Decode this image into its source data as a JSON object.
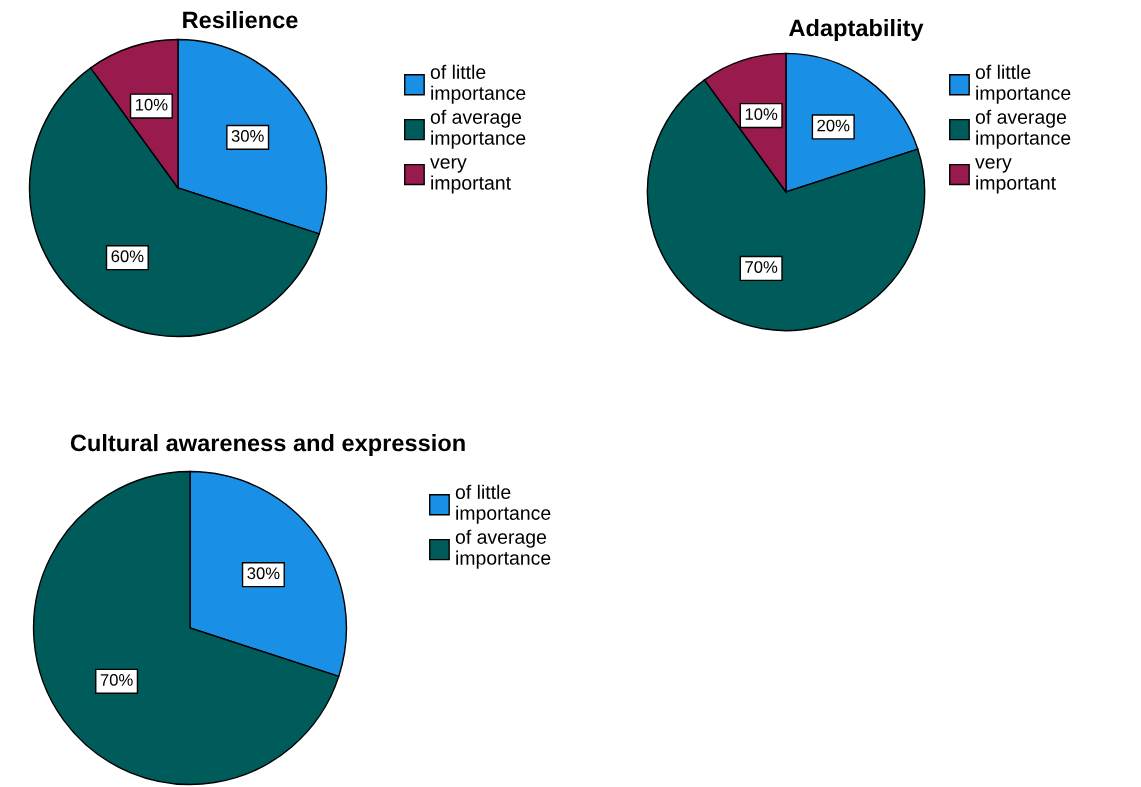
{
  "chart_data": [
    {
      "type": "pie",
      "title": "Resilience",
      "categories": [
        "of little importance",
        "of average importance",
        "very important"
      ],
      "values": [
        30,
        60,
        10
      ],
      "colors": [
        "#1a8fe6",
        "#005b5b",
        "#991a4c"
      ],
      "value_labels": [
        "30%",
        "60%",
        "10%"
      ],
      "legend": "right"
    },
    {
      "type": "pie",
      "title": "Adaptability",
      "categories": [
        "of little importance",
        "of average importance",
        "very important"
      ],
      "values": [
        20,
        70,
        10
      ],
      "colors": [
        "#1a8fe6",
        "#005b5b",
        "#991a4c"
      ],
      "value_labels": [
        "20%",
        "70%",
        "10%"
      ],
      "legend": "right"
    },
    {
      "type": "pie",
      "title": "Cultural awareness and expression",
      "categories": [
        "of little importance",
        "of average importance"
      ],
      "values": [
        30,
        70
      ],
      "colors": [
        "#1a8fe6",
        "#005b5b"
      ],
      "value_labels": [
        "30%",
        "70%"
      ],
      "legend": "right"
    }
  ]
}
